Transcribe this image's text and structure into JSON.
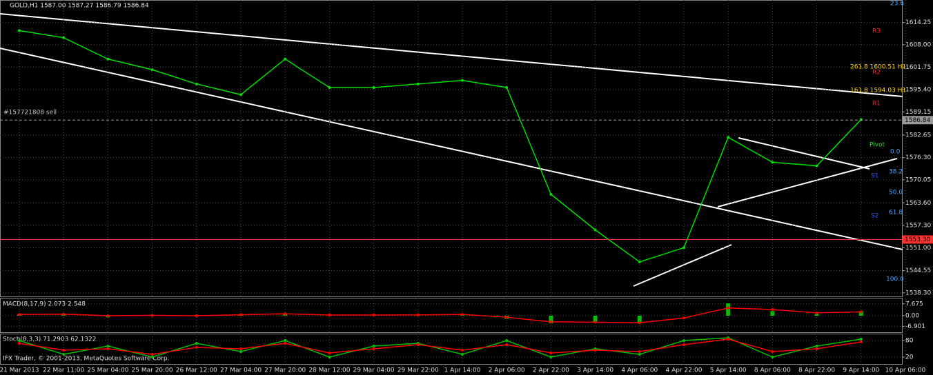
{
  "chart_data": [
    {
      "type": "line",
      "title": "GOLD,H1  1587.00 1587.27 1586.79 1586.84",
      "categories": [
        "21 Mar 2013",
        "22 Mar 11:00",
        "25 Mar 04:00",
        "25 Mar 20:00",
        "26 Mar 12:00",
        "27 Mar 04:00",
        "27 Mar 20:00",
        "28 Mar 12:00",
        "29 Mar 04:00",
        "29 Mar 22:00",
        "1 Apr 14:00",
        "2 Apr 06:00",
        "2 Apr 22:00",
        "3 Apr 14:00",
        "4 Apr 06:00",
        "4 Apr 22:00",
        "5 Apr 14:00",
        "8 Apr 06:00",
        "8 Apr 22:00",
        "9 Apr 14:00",
        "10 Apr 06:00"
      ],
      "series": [
        {
          "color": "#00e000",
          "values": [
            1612,
            1610,
            1604,
            1601,
            1597,
            1594,
            1604,
            1596,
            1596,
            1597,
            1598,
            1596,
            1566,
            1556,
            1547,
            1551,
            1582,
            1575,
            1574,
            1587,
            null
          ]
        }
      ],
      "ylim": [
        1537.7,
        1620.2
      ],
      "yticks": [
        1614.25,
        {
          "value": 1608,
          "label": "1608.00"
        },
        1601.75,
        {
          "value": 1595.4,
          "label": "1595.40"
        },
        1589.15,
        1582.65,
        {
          "value": 1576.3,
          "label": "1576.30"
        },
        1570.05,
        {
          "value": 1563.6,
          "label": "1563.60"
        },
        {
          "value": 1557.3,
          "label": "1557.30"
        },
        {
          "value": 1551,
          "label": "1551.00"
        },
        1544.55,
        {
          "value": 1538.3,
          "label": "1538.30"
        }
      ],
      "grid": true,
      "price_lines": [
        {
          "value": 1586.84,
          "color": "#9a9a9a"
        },
        {
          "value": 1553.3,
          "label": "1553.30",
          "color": "#ff3030"
        }
      ],
      "annotations": [
        {
          "text": "#157721808 sell",
          "color": "#c0c0c0"
        },
        {
          "text": "R3",
          "color": "#ff2020"
        },
        {
          "text": "R2",
          "color": "#ff2020"
        },
        {
          "text": "R1",
          "color": "#ff2020"
        },
        {
          "text": "Pivot",
          "color": "#20e020"
        },
        {
          "text": "S1",
          "color": "#3050ff"
        },
        {
          "text": "S2",
          "color": "#3050ff"
        },
        {
          "text": "261.8 1600.51 H1",
          "color": "#ffd700"
        },
        {
          "text": "161.8 1594.03 H1",
          "color": "#ffd700"
        },
        {
          "text": "23.6",
          "color": "#4aa8ff"
        },
        {
          "text": "0.0",
          "color": "#4aa8ff"
        },
        {
          "text": "38.2",
          "color": "#4aa8ff"
        },
        {
          "text": "50.0",
          "color": "#4aa8ff"
        },
        {
          "text": "61.8",
          "color": "#4aa8ff"
        },
        {
          "text": "100.0",
          "color": "#4aa8ff"
        }
      ]
    },
    {
      "type": "bar",
      "title": "MACD(8,17,9) 2.073 2.548",
      "series": [
        {
          "type": "bar",
          "color": "#00c000",
          "values": [
            1,
            1,
            -1,
            0.5,
            -0.5,
            1,
            1.5,
            0,
            0.5,
            0.5,
            1,
            -2,
            -5,
            -4,
            -5,
            0,
            8,
            3,
            1,
            3,
            null
          ]
        },
        {
          "type": "line",
          "color": "#ff0000",
          "values": [
            0.8,
            1,
            0,
            0.2,
            0,
            0.6,
            1.2,
            0.4,
            0.4,
            0.5,
            0.8,
            -1,
            -4,
            -4.2,
            -4.6,
            -1.5,
            5,
            4,
            1.8,
            2.5,
            null
          ]
        }
      ],
      "ylim": [
        -10.3,
        10.7
      ],
      "yticks": [
        7.675,
        {
          "value": 0,
          "label": "0.00"
        },
        -6.901
      ]
    },
    {
      "type": "line",
      "title": "Stoch(8,3,3) 71.2903 62.1322",
      "series": [
        {
          "color": "#00c000",
          "values": [
            80,
            30,
            60,
            20,
            70,
            40,
            80,
            20,
            60,
            70,
            30,
            80,
            20,
            50,
            30,
            80,
            90,
            20,
            60,
            85,
            null
          ]
        },
        {
          "color": "#ff0000",
          "values": [
            70,
            45,
            50,
            30,
            55,
            50,
            70,
            35,
            50,
            65,
            45,
            65,
            35,
            45,
            40,
            65,
            85,
            40,
            50,
            75,
            null
          ]
        }
      ],
      "ylim": [
        0,
        100
      ],
      "yticks": [
        80,
        20
      ],
      "footer": "IFX Trader, © 2001-2013, MetaQuotes Software Corp."
    }
  ]
}
